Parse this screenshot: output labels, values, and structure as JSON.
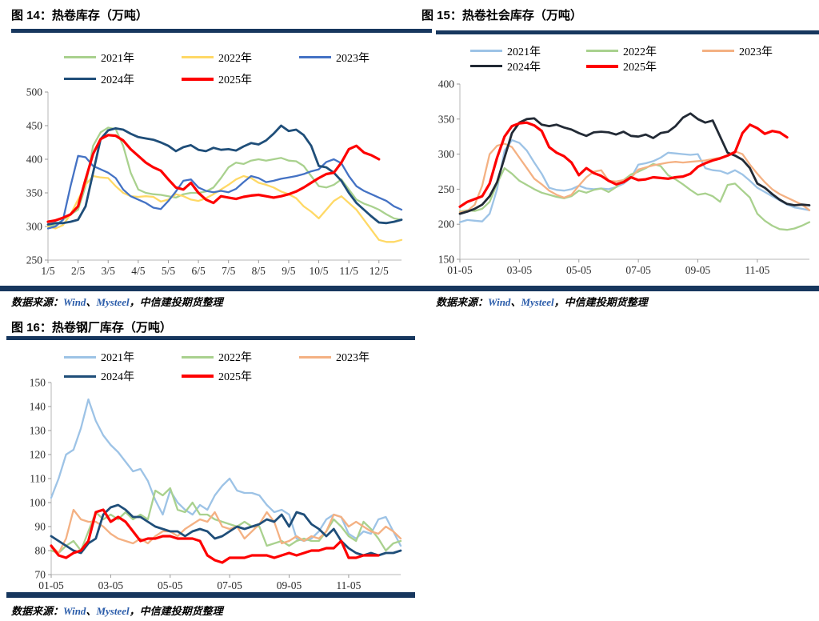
{
  "accent_color": "#17375e",
  "link_color": "#2a5caa",
  "chart_data": [
    {
      "type": "line",
      "title": "图 14：热卷库存（万吨）",
      "source_note": [
        "数据来源：",
        "Wind",
        "、",
        "Mysteel",
        "，中信建投期货整理"
      ],
      "y_min": 250,
      "y_max": 500,
      "y_step": 50,
      "ylim": [
        250,
        500
      ],
      "grid": false,
      "legend_position": "top",
      "n_points": 48,
      "x_tick_labels": [
        "1/5",
        "2/5",
        "3/5",
        "4/5",
        "5/5",
        "6/5",
        "7/5",
        "8/5",
        "9/5",
        "10/5",
        "11/5",
        "12/5"
      ],
      "x_tick_indices": [
        0,
        4,
        8,
        12,
        16,
        20,
        24,
        28,
        32,
        36,
        40,
        44
      ],
      "series": [
        {
          "name": "2021年",
          "color": "#a9d18e",
          "values": [
            300,
            302,
            310,
            318,
            325,
            360,
            420,
            440,
            447,
            445,
            420,
            380,
            355,
            350,
            348,
            347,
            345,
            343,
            348,
            350,
            350,
            352,
            358,
            372,
            388,
            395,
            393,
            398,
            400,
            398,
            400,
            402,
            398,
            397,
            390,
            375,
            360,
            358,
            362,
            370,
            355,
            340,
            334,
            330,
            325,
            318,
            312,
            310
          ]
        },
        {
          "name": "2022年",
          "color": "#ffd966",
          "values": [
            300,
            297,
            302,
            318,
            340,
            362,
            375,
            373,
            372,
            360,
            350,
            345,
            344,
            345,
            344,
            337,
            340,
            348,
            345,
            340,
            338,
            342,
            348,
            355,
            362,
            370,
            375,
            372,
            365,
            362,
            358,
            352,
            348,
            342,
            330,
            322,
            312,
            325,
            338,
            345,
            335,
            325,
            310,
            295,
            280,
            277,
            277,
            280
          ]
        },
        {
          "name": "2023年",
          "color": "#4472c4",
          "values": [
            297,
            300,
            310,
            360,
            405,
            403,
            390,
            385,
            380,
            372,
            355,
            345,
            340,
            335,
            328,
            326,
            338,
            352,
            368,
            370,
            358,
            353,
            351,
            353,
            351,
            356,
            366,
            375,
            372,
            366,
            368,
            371,
            373,
            375,
            378,
            382,
            385,
            396,
            400,
            394,
            375,
            360,
            353,
            348,
            343,
            338,
            330,
            325
          ]
        },
        {
          "name": "2024年",
          "color": "#1f4e79",
          "values": [
            303,
            305,
            305,
            307,
            310,
            330,
            380,
            430,
            443,
            446,
            444,
            438,
            433,
            431,
            429,
            425,
            420,
            412,
            418,
            421,
            414,
            412,
            417,
            414,
            415,
            413,
            419,
            424,
            422,
            428,
            438,
            450,
            442,
            444,
            436,
            420,
            390,
            388,
            380,
            368,
            350,
            335,
            325,
            315,
            306,
            305,
            307,
            310
          ]
        },
        {
          "name": "2025年",
          "color": "#fe0000",
          "values": [
            307,
            309,
            313,
            318,
            330,
            370,
            408,
            430,
            436,
            435,
            428,
            415,
            405,
            395,
            388,
            383,
            370,
            358,
            355,
            365,
            350,
            340,
            335,
            345,
            343,
            341,
            344,
            346,
            347,
            345,
            343,
            345,
            348,
            352,
            358,
            365,
            372,
            378,
            380,
            395,
            415,
            420,
            410,
            406,
            400
          ]
        }
      ]
    },
    {
      "type": "line",
      "title": "图 15：热卷社会库存（万吨）",
      "source_note": [
        "数据来源：",
        "Wind",
        "、",
        "Mysteel",
        "，中信建投期货整理"
      ],
      "y_min": 150,
      "y_max": 400,
      "y_step": 50,
      "ylim": [
        150,
        400
      ],
      "grid": false,
      "legend_position": "top",
      "n_points": 48,
      "x_tick_labels": [
        "01-05",
        "03-05",
        "05-05",
        "07-05",
        "09-05",
        "11-05"
      ],
      "x_tick_indices": [
        0,
        8,
        16,
        24,
        32,
        40
      ],
      "series": [
        {
          "name": "2021年",
          "color": "#9dc3e6",
          "values": [
            203,
            206,
            205,
            204,
            215,
            250,
            305,
            320,
            316,
            305,
            288,
            272,
            252,
            249,
            248,
            250,
            255,
            251,
            250,
            251,
            250,
            253,
            258,
            266,
            285,
            287,
            290,
            295,
            302,
            301,
            300,
            299,
            300,
            280,
            277,
            276,
            272,
            277,
            271,
            262,
            252,
            246,
            240,
            234,
            228,
            224,
            222,
            220
          ]
        },
        {
          "name": "2022年",
          "color": "#a9d18e",
          "values": [
            218,
            220,
            219,
            222,
            232,
            258,
            280,
            272,
            262,
            256,
            250,
            245,
            242,
            239,
            237,
            240,
            248,
            245,
            249,
            251,
            246,
            253,
            263,
            271,
            275,
            280,
            286,
            283,
            270,
            264,
            257,
            249,
            242,
            244,
            240,
            232,
            256,
            258,
            248,
            238,
            215,
            205,
            198,
            193,
            192,
            194,
            198,
            203
          ]
        },
        {
          "name": "2023年",
          "color": "#f4b183",
          "values": [
            217,
            219,
            228,
            255,
            300,
            312,
            315,
            310,
            295,
            280,
            265,
            257,
            248,
            242,
            238,
            242,
            255,
            267,
            275,
            277,
            262,
            261,
            263,
            266,
            278,
            281,
            284,
            286,
            288,
            289,
            288,
            289,
            290,
            291,
            293,
            295,
            298,
            304,
            300,
            285,
            272,
            260,
            250,
            243,
            238,
            233,
            228,
            220
          ]
        },
        {
          "name": "2024年",
          "color": "#222a35",
          "values": [
            215,
            218,
            222,
            228,
            240,
            260,
            295,
            330,
            345,
            350,
            351,
            342,
            340,
            342,
            338,
            335,
            330,
            326,
            331,
            332,
            331,
            328,
            332,
            326,
            325,
            328,
            323,
            330,
            332,
            340,
            352,
            358,
            350,
            345,
            348,
            325,
            302,
            298,
            292,
            280,
            258,
            252,
            243,
            235,
            229,
            227,
            228,
            227
          ]
        },
        {
          "name": "2025年",
          "color": "#fe0000",
          "values": [
            225,
            232,
            236,
            240,
            258,
            295,
            325,
            340,
            344,
            345,
            341,
            333,
            310,
            302,
            297,
            288,
            270,
            280,
            273,
            269,
            262,
            257,
            260,
            267,
            263,
            264,
            267,
            266,
            265,
            267,
            268,
            272,
            282,
            287,
            291,
            294,
            298,
            303,
            330,
            342,
            337,
            329,
            333,
            331,
            324
          ]
        }
      ]
    },
    {
      "type": "line",
      "title": "图 16：热卷钢厂库存（万吨）",
      "source_note": [
        "数据来源：",
        "Wind",
        "、",
        "Mysteel",
        "，中信建投期货整理"
      ],
      "y_min": 70,
      "y_max": 150,
      "y_step": 10,
      "ylim": [
        70,
        150
      ],
      "grid": false,
      "legend_position": "top",
      "n_points": 48,
      "x_tick_labels": [
        "01-05",
        "03-05",
        "05-05",
        "07-05",
        "09-05",
        "11-05"
      ],
      "x_tick_indices": [
        0,
        8,
        16,
        24,
        32,
        40
      ],
      "series": [
        {
          "name": "2021年",
          "color": "#9dc3e6",
          "values": [
            102,
            110,
            120,
            122,
            131,
            143,
            134,
            128,
            124,
            121,
            117,
            113,
            114,
            109,
            101,
            95,
            105,
            100,
            97,
            95,
            99,
            97,
            103,
            107,
            110,
            105,
            104,
            104,
            103,
            99,
            96,
            97,
            95,
            85,
            84,
            85,
            88,
            93,
            95,
            94,
            87,
            85,
            88,
            87,
            93,
            94,
            88,
            82
          ]
        },
        {
          "name": "2022年",
          "color": "#a9d18e",
          "values": [
            80,
            79,
            82,
            84,
            80,
            88,
            96,
            93,
            95,
            93,
            96,
            93,
            95,
            93,
            105,
            103,
            106,
            97,
            96,
            100,
            95,
            95,
            93,
            92,
            91,
            90,
            92,
            90,
            90,
            82,
            83,
            84,
            82,
            84,
            85,
            84,
            84,
            88,
            93,
            90,
            86,
            84,
            92,
            89,
            85,
            80,
            83,
            84
          ]
        },
        {
          "name": "2023年",
          "color": "#f4b183",
          "values": [
            82,
            79,
            85,
            97,
            93,
            92,
            92,
            90,
            87,
            85,
            84,
            83,
            85,
            83,
            86,
            88,
            88,
            86,
            89,
            91,
            93,
            92,
            96,
            90,
            89,
            90,
            85,
            88,
            91,
            96,
            92,
            83,
            84,
            86,
            84,
            86,
            85,
            88,
            95,
            94,
            90,
            92,
            90,
            88,
            87,
            90,
            88,
            85
          ]
        },
        {
          "name": "2024年",
          "color": "#1f4e79",
          "values": [
            86,
            84,
            82,
            80,
            79,
            83,
            85,
            95,
            98,
            99,
            97,
            94,
            94,
            92,
            90,
            89,
            88,
            88,
            86,
            88,
            89,
            88,
            85,
            86,
            88,
            90,
            89,
            90,
            91,
            93,
            92,
            95,
            90,
            96,
            95,
            91,
            89,
            86,
            89,
            84,
            81,
            79,
            78,
            79,
            78,
            79,
            79,
            80
          ]
        },
        {
          "name": "2025年",
          "color": "#fe0000",
          "values": [
            82,
            78,
            77,
            79,
            80,
            84,
            96,
            97,
            92,
            94,
            92,
            88,
            84,
            85,
            85,
            86,
            86,
            85,
            85,
            85,
            84,
            78,
            76,
            75,
            77,
            77,
            77,
            78,
            78,
            78,
            77,
            78,
            79,
            78,
            79,
            80,
            80,
            81,
            81,
            84,
            77,
            77,
            78,
            78,
            78
          ]
        }
      ]
    }
  ]
}
